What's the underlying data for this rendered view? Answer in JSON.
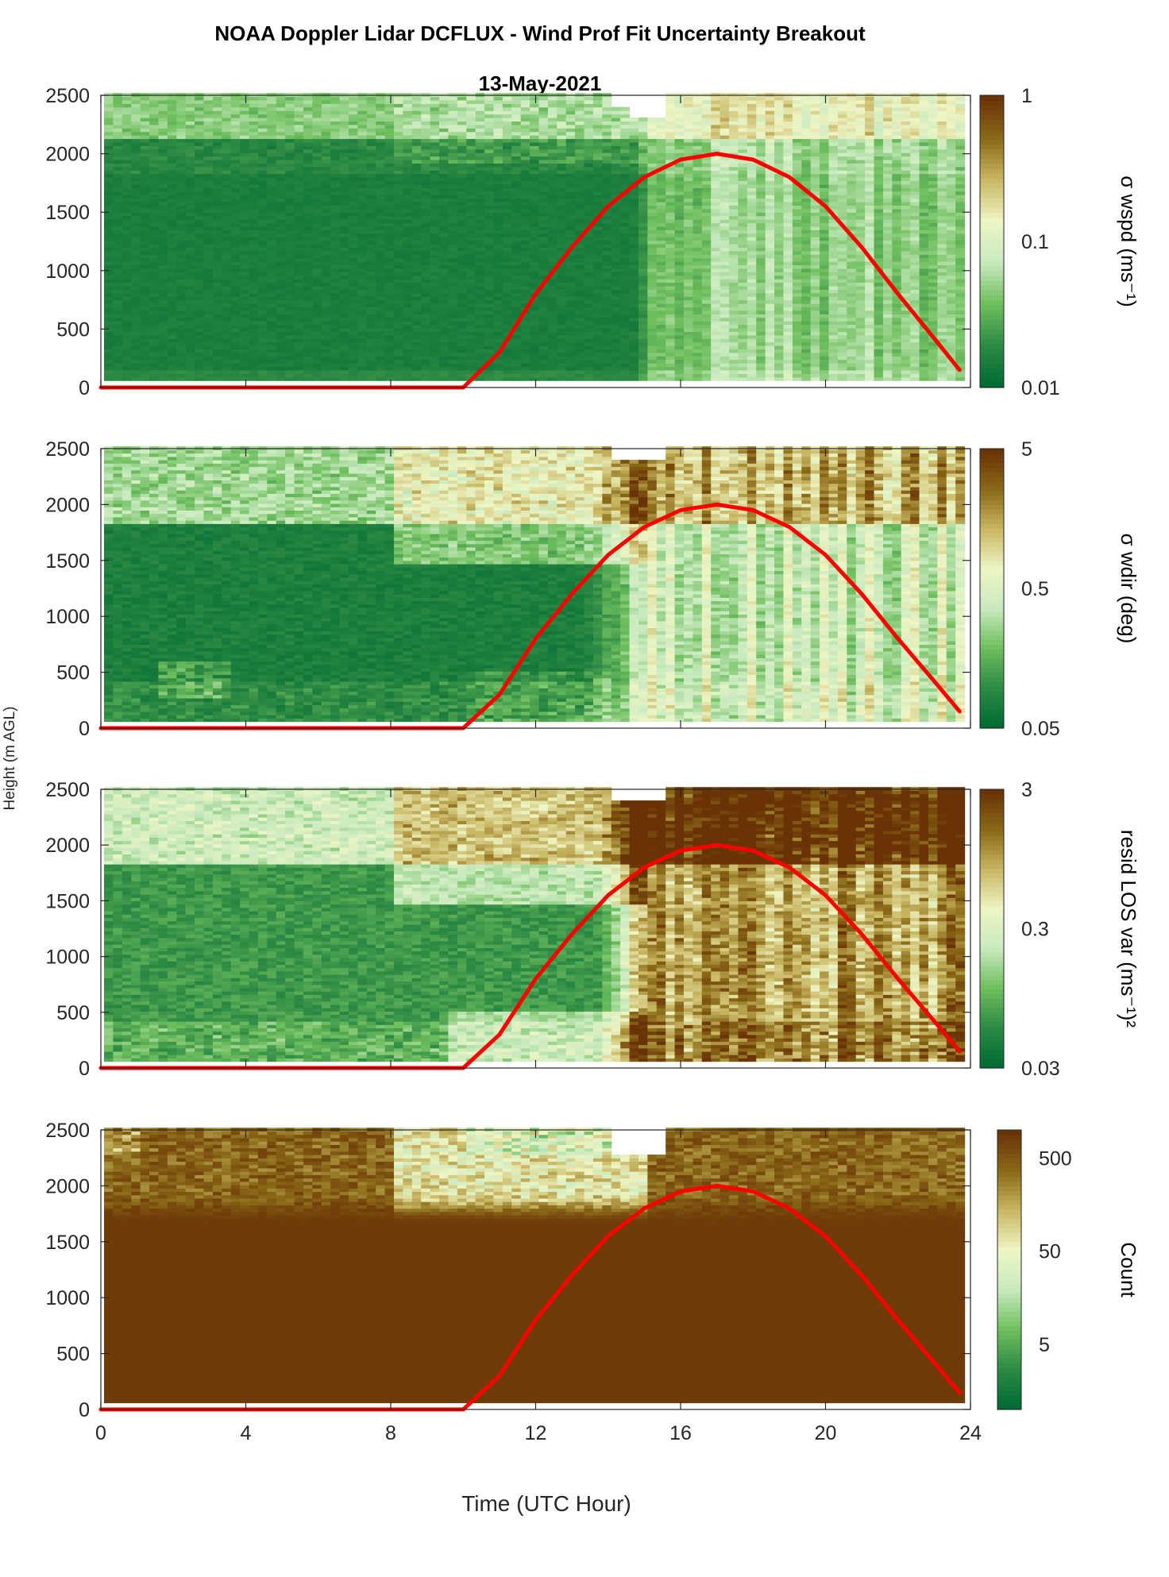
{
  "figure": {
    "title": "NOAA Doppler Lidar DCFLUX - Wind Prof Fit Uncertainty Breakout",
    "subtitle": "13-May-2021",
    "ylabel": "Height (m AGL)",
    "xlabel": "Time (UTC Hour)",
    "colors": {
      "sun_curve": "#ff0000",
      "colormap": [
        "#006b33",
        "#2e8b44",
        "#6fbf5e",
        "#c8eabf",
        "#eef5c4",
        "#c9b865",
        "#8a6a18",
        "#6a3306"
      ]
    }
  },
  "chart_data": [
    {
      "type": "heatmap",
      "title": "",
      "colorbar_label": "σ wspd (ms⁻¹)",
      "colorbar_scale": "log",
      "colorbar_ticks": [
        "0.01",
        "0.1",
        "1"
      ],
      "clim": [
        0.01,
        1
      ],
      "xlim": [
        0,
        24
      ],
      "ylim": [
        0,
        2500
      ],
      "x_ticks": [
        "0",
        "4",
        "8",
        "12",
        "16",
        "20",
        "24"
      ],
      "y_ticks": [
        "0",
        "500",
        "1000",
        "1500",
        "2000",
        "2500"
      ],
      "typical_values": {
        "night_0_10h": 0.012,
        "day_15_24h": 0.03,
        "top_layer": 0.05
      },
      "overlay_line": {
        "name": "",
        "x": [
          0,
          10,
          11,
          12,
          13,
          14,
          15,
          16,
          17,
          18,
          19,
          20,
          21,
          22,
          23,
          23.7
        ],
        "y": [
          0,
          0,
          300,
          800,
          1200,
          1550,
          1800,
          1950,
          2000,
          1950,
          1800,
          1550,
          1200,
          800,
          420,
          150
        ]
      }
    },
    {
      "type": "heatmap",
      "title": "",
      "colorbar_label": "σ wdir (deg)",
      "colorbar_scale": "log",
      "colorbar_ticks": [
        "0.05",
        "0.5",
        "5"
      ],
      "clim": [
        0.05,
        5
      ],
      "xlim": [
        0,
        24
      ],
      "ylim": [
        0,
        2500
      ],
      "x_ticks": [
        "0",
        "4",
        "8",
        "12",
        "16",
        "20",
        "24"
      ],
      "y_ticks": [
        "0",
        "500",
        "1000",
        "1500",
        "2000",
        "2500"
      ],
      "typical_values": {
        "night_0_10h": 0.07,
        "day_15_24h": 0.3,
        "top_layer": 0.5
      },
      "overlay_line": {
        "name": "",
        "x": [
          0,
          10,
          11,
          12,
          13,
          14,
          15,
          16,
          17,
          18,
          19,
          20,
          21,
          22,
          23,
          23.7
        ],
        "y": [
          0,
          0,
          300,
          800,
          1200,
          1550,
          1800,
          1950,
          2000,
          1950,
          1800,
          1550,
          1200,
          800,
          420,
          150
        ]
      }
    },
    {
      "type": "heatmap",
      "title": "",
      "colorbar_label": "resid LOS var (ms⁻¹)²",
      "colorbar_scale": "log",
      "colorbar_ticks": [
        "0.03",
        "0.3",
        "3"
      ],
      "clim": [
        0.03,
        3
      ],
      "xlim": [
        0,
        24
      ],
      "ylim": [
        0,
        2500
      ],
      "x_ticks": [
        "0",
        "4",
        "8",
        "12",
        "16",
        "20",
        "24"
      ],
      "y_ticks": [
        "0",
        "500",
        "1000",
        "1500",
        "2000",
        "2500"
      ],
      "typical_values": {
        "night_0_10h": 0.1,
        "day_15_24h": 1.5,
        "top_layer": 0.4
      },
      "overlay_line": {
        "name": "",
        "x": [
          0,
          10,
          11,
          12,
          13,
          14,
          15,
          16,
          17,
          18,
          19,
          20,
          21,
          22,
          23,
          23.7
        ],
        "y": [
          0,
          0,
          300,
          800,
          1200,
          1550,
          1800,
          1950,
          2000,
          1950,
          1800,
          1550,
          1200,
          800,
          420,
          150
        ]
      }
    },
    {
      "type": "heatmap",
      "title": "",
      "colorbar_label": "Count",
      "colorbar_scale": "log",
      "colorbar_ticks": [
        "5",
        "50",
        "500"
      ],
      "clim": [
        1,
        1000
      ],
      "xlim": [
        0,
        24
      ],
      "ylim": [
        0,
        2500
      ],
      "x_ticks": [
        "0",
        "4",
        "8",
        "12",
        "16",
        "20",
        "24"
      ],
      "y_ticks": [
        "0",
        "500",
        "1000",
        "1500",
        "2000",
        "2500"
      ],
      "typical_values": {
        "below_1700m": 500,
        "top_layer_night": 300,
        "top_layer_11_15h": 20
      },
      "overlay_line": {
        "name": "",
        "x": [
          0,
          10,
          11,
          12,
          13,
          14,
          15,
          16,
          17,
          18,
          19,
          20,
          21,
          22,
          23,
          23.7
        ],
        "y": [
          0,
          0,
          300,
          800,
          1200,
          1550,
          1800,
          1950,
          2000,
          1950,
          1800,
          1550,
          1200,
          800,
          420,
          150
        ]
      }
    }
  ]
}
